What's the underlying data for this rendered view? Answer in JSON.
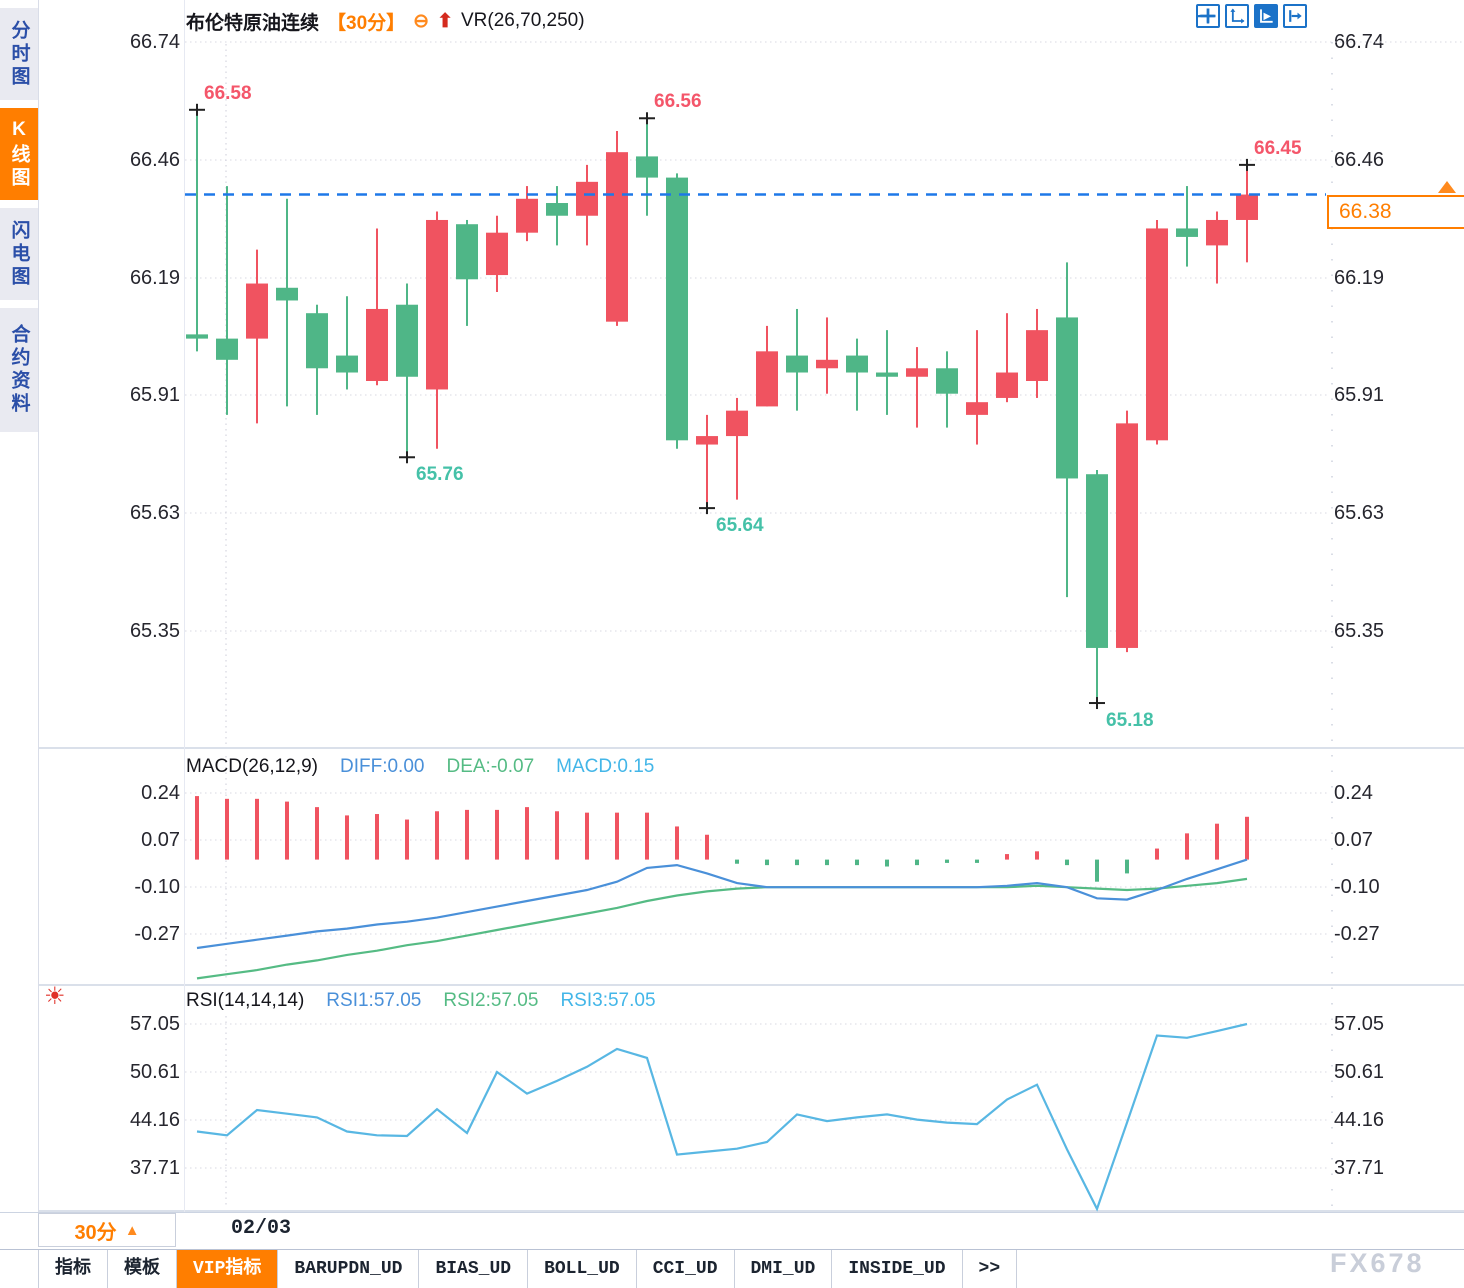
{
  "header": {
    "title": "布伦特原油连续",
    "period": "【30分】",
    "vr_label": "VR(26,70,250)"
  },
  "icons": {
    "circle_minus": "⊖",
    "up_arrow": "⬆",
    "sun": "☀",
    "up_triangle": "▲"
  },
  "sidebar": {
    "items": [
      {
        "label": "分时图",
        "name": "sidebar-item-time-chart",
        "active": false
      },
      {
        "label": "K线图",
        "name": "sidebar-item-kline-chart",
        "active": true
      },
      {
        "label": "闪电图",
        "name": "sidebar-item-flash-chart",
        "active": false
      },
      {
        "label": "合约资料",
        "name": "sidebar-item-contract-info",
        "active": false
      }
    ]
  },
  "toolbar": {
    "buttons": [
      {
        "name": "crosshair-move-icon",
        "active": false
      },
      {
        "name": "axis-scale-icon",
        "active": false
      },
      {
        "name": "axis-pointer-icon",
        "active": true
      },
      {
        "name": "pan-right-icon",
        "active": false
      }
    ]
  },
  "price_tag": {
    "value": "66.38"
  },
  "bottom": {
    "period_label": "30分",
    "date_label": "02/03",
    "tabs": [
      {
        "label": "指标",
        "name": "tab-indicator",
        "active": false
      },
      {
        "label": "模板",
        "name": "tab-template",
        "active": false
      },
      {
        "label": "VIP指标",
        "name": "tab-vip-indicator",
        "active": true
      },
      {
        "label": "BARUPDN_UD",
        "name": "tab-barupdn",
        "active": false
      },
      {
        "label": "BIAS_UD",
        "name": "tab-bias",
        "active": false
      },
      {
        "label": "BOLL_UD",
        "name": "tab-boll",
        "active": false
      },
      {
        "label": "CCI_UD",
        "name": "tab-cci",
        "active": false
      },
      {
        "label": "DMI_UD",
        "name": "tab-dmi",
        "active": false
      },
      {
        "label": "INSIDE_UD",
        "name": "tab-inside",
        "active": false
      },
      {
        "label": ">>",
        "name": "tab-more",
        "active": false
      }
    ]
  },
  "watermark": "FX678",
  "colors": {
    "up": "#f05360",
    "down": "#4fb687",
    "anno_low": "#45c1a8",
    "anno_high": "#f4566a",
    "accent_orange": "#ff7e00",
    "dash_blue": "#1e78e8",
    "diff_blue": "#4a90d9",
    "dea_green": "#55bb84",
    "macd_cyan": "#43b6e8",
    "rsi_line": "#58b7e3",
    "grid": "#d8d8e2",
    "axis_text": "#26262e",
    "marker": "#222222"
  },
  "chart_data": {
    "type": "candlestick",
    "symbol": "布伦特原油连续",
    "interval": "30分",
    "current_price": 66.38,
    "price_axis": [
      "66.74",
      "66.46",
      "66.19",
      "65.91",
      "65.63",
      "65.35"
    ],
    "ylim": [
      65.35,
      66.74
    ],
    "session_date": "02/03",
    "candles_ohlc": [
      [
        66.05,
        66.58,
        66.01,
        66.04
      ],
      [
        66.04,
        66.4,
        65.86,
        65.99
      ],
      [
        66.04,
        66.25,
        65.84,
        66.17
      ],
      [
        66.16,
        66.37,
        65.88,
        66.13
      ],
      [
        66.1,
        66.12,
        65.86,
        65.97
      ],
      [
        66.0,
        66.14,
        65.92,
        65.96
      ],
      [
        65.94,
        66.3,
        65.93,
        66.11
      ],
      [
        66.12,
        66.17,
        65.76,
        65.95
      ],
      [
        65.92,
        66.34,
        65.78,
        66.32
      ],
      [
        66.31,
        66.32,
        66.07,
        66.18
      ],
      [
        66.19,
        66.33,
        66.15,
        66.29
      ],
      [
        66.29,
        66.4,
        66.27,
        66.37
      ],
      [
        66.36,
        66.4,
        66.26,
        66.33
      ],
      [
        66.33,
        66.45,
        66.26,
        66.41
      ],
      [
        66.08,
        66.53,
        66.07,
        66.48
      ],
      [
        66.47,
        66.56,
        66.33,
        66.42
      ],
      [
        66.42,
        66.43,
        65.78,
        65.8
      ],
      [
        65.79,
        65.86,
        65.64,
        65.81
      ],
      [
        65.81,
        65.9,
        65.66,
        65.87
      ],
      [
        65.88,
        66.07,
        65.88,
        66.01
      ],
      [
        66.0,
        66.11,
        65.87,
        65.96
      ],
      [
        65.97,
        66.09,
        65.91,
        65.99
      ],
      [
        66.0,
        66.04,
        65.87,
        65.96
      ],
      [
        65.96,
        66.06,
        65.86,
        65.95
      ],
      [
        65.95,
        66.02,
        65.83,
        65.97
      ],
      [
        65.97,
        66.01,
        65.83,
        65.91
      ],
      [
        65.86,
        66.06,
        65.79,
        65.89
      ],
      [
        65.9,
        66.1,
        65.89,
        65.96
      ],
      [
        65.94,
        66.11,
        65.9,
        66.06
      ],
      [
        66.09,
        66.22,
        65.43,
        65.71
      ],
      [
        65.72,
        65.73,
        65.18,
        65.31
      ],
      [
        65.31,
        65.87,
        65.3,
        65.84
      ],
      [
        65.8,
        66.32,
        65.79,
        66.3
      ],
      [
        66.3,
        66.4,
        66.21,
        66.28
      ],
      [
        66.26,
        66.34,
        66.17,
        66.32
      ],
      [
        66.32,
        66.45,
        66.22,
        66.38
      ]
    ],
    "annotations": [
      {
        "i": 0,
        "side": "high",
        "text": "66.58"
      },
      {
        "i": 15,
        "side": "high",
        "text": "66.56"
      },
      {
        "i": 35,
        "side": "high",
        "text": "66.45"
      },
      {
        "i": 7,
        "side": "low",
        "text": "65.76"
      },
      {
        "i": 17,
        "side": "low",
        "text": "65.64"
      },
      {
        "i": 30,
        "side": "low",
        "text": "65.18"
      }
    ],
    "macd": {
      "title": "MACD(26,12,9)",
      "diff_label": "DIFF:0.00",
      "dea_label": "DEA:-0.07",
      "macd_label": "MACD:0.15",
      "axis": [
        "0.24",
        "0.07",
        "-0.10",
        "-0.27"
      ],
      "hist": [
        0.23,
        0.22,
        0.22,
        0.21,
        0.19,
        0.16,
        0.165,
        0.145,
        0.175,
        0.18,
        0.18,
        0.19,
        0.175,
        0.17,
        0.17,
        0.17,
        0.12,
        0.09,
        -0.015,
        -0.02,
        -0.02,
        -0.02,
        -0.02,
        -0.025,
        -0.02,
        -0.012,
        -0.012,
        0.02,
        0.03,
        -0.02,
        -0.08,
        -0.05,
        0.04,
        0.095,
        0.13,
        0.155
      ],
      "diff": [
        -0.32,
        -0.305,
        -0.29,
        -0.275,
        -0.26,
        -0.25,
        -0.235,
        -0.225,
        -0.21,
        -0.19,
        -0.17,
        -0.15,
        -0.13,
        -0.11,
        -0.08,
        -0.03,
        -0.02,
        -0.05,
        -0.085,
        -0.1,
        -0.1,
        -0.1,
        -0.1,
        -0.1,
        -0.1,
        -0.1,
        -0.1,
        -0.095,
        -0.085,
        -0.1,
        -0.14,
        -0.145,
        -0.11,
        -0.07,
        -0.035,
        0.0
      ],
      "dea": [
        -0.43,
        -0.415,
        -0.4,
        -0.38,
        -0.365,
        -0.345,
        -0.33,
        -0.31,
        -0.295,
        -0.275,
        -0.255,
        -0.235,
        -0.215,
        -0.195,
        -0.175,
        -0.15,
        -0.13,
        -0.115,
        -0.105,
        -0.1,
        -0.1,
        -0.1,
        -0.1,
        -0.1,
        -0.1,
        -0.1,
        -0.1,
        -0.1,
        -0.095,
        -0.1,
        -0.105,
        -0.11,
        -0.105,
        -0.095,
        -0.085,
        -0.07
      ]
    },
    "rsi": {
      "title": "RSI(14,14,14)",
      "rsi1_label": "RSI1:57.05",
      "rsi2_label": "RSI2:57.05",
      "rsi3_label": "RSI3:57.05",
      "axis": [
        "57.05",
        "50.61",
        "44.16",
        "37.71"
      ],
      "values": [
        42.6,
        42.1,
        45.5,
        45.0,
        44.5,
        42.6,
        42.1,
        42.0,
        45.6,
        42.4,
        50.6,
        47.7,
        49.4,
        51.3,
        53.7,
        52.5,
        39.5,
        39.9,
        40.3,
        41.2,
        44.9,
        44.0,
        44.5,
        44.9,
        44.2,
        43.8,
        43.6,
        46.9,
        48.9,
        40.2,
        32.2,
        43.8,
        55.5,
        55.2,
        56.1,
        57.05
      ]
    }
  }
}
